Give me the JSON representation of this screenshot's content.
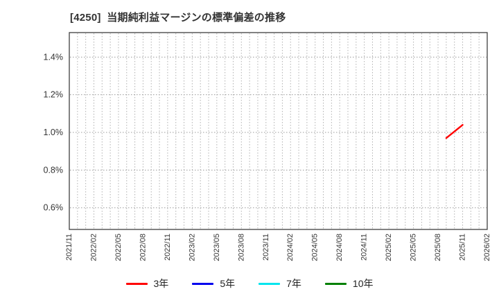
{
  "chart_data": {
    "type": "line",
    "title": "[4250]  当期純利益マージンの標準偏差の推移",
    "title_color": "#333333",
    "background_color": "#ffffff",
    "grid": true,
    "grid_style": "dotted",
    "grid_color": "#b0b0b0",
    "border_color": "#3f3f3f",
    "x_start": "2021/11",
    "x_end": "2026/02",
    "x_tick_labels": [
      "2021/11",
      "2022/02",
      "2022/05",
      "2022/08",
      "2022/11",
      "2023/02",
      "2023/05",
      "2023/08",
      "2023/11",
      "2024/02",
      "2024/05",
      "2024/08",
      "2024/11",
      "2025/02",
      "2025/05",
      "2025/08",
      "2025/11",
      "2026/02"
    ],
    "x_minor_gridline_interval_months": 1,
    "y_ticks": [
      {
        "value": 1.4,
        "label": "1.4%"
      },
      {
        "value": 1.2,
        "label": "1.2%"
      },
      {
        "value": 1.0,
        "label": "1.0%"
      },
      {
        "value": 0.8,
        "label": "0.8%"
      },
      {
        "value": 0.6,
        "label": "0.6%"
      }
    ],
    "ylim": [
      0.485,
      1.53
    ],
    "legend_position": "bottom",
    "series": [
      {
        "name": "3年",
        "color": "#ff0000",
        "points": [
          {
            "x": "2025/09",
            "y": 0.97
          },
          {
            "x": "2025/11",
            "y": 1.04
          }
        ]
      },
      {
        "name": "5年",
        "color": "#0000ee",
        "points": []
      },
      {
        "name": "7年",
        "color": "#00e5ee",
        "points": []
      },
      {
        "name": "10年",
        "color": "#008000",
        "points": []
      }
    ]
  }
}
